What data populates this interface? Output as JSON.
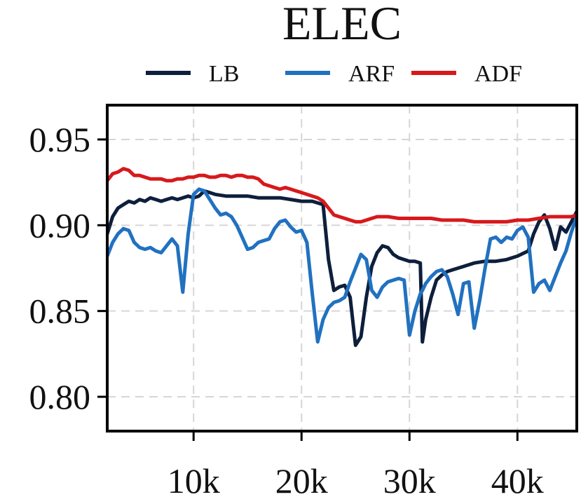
{
  "chart_data": {
    "type": "line",
    "title": "ELEC",
    "xlabel": "",
    "ylabel": "",
    "xlim": [
      2000,
      45500
    ],
    "ylim": [
      0.78,
      0.97
    ],
    "xticks": [
      10000,
      20000,
      30000,
      40000
    ],
    "xtick_labels": [
      "10k",
      "20k",
      "30k",
      "40k"
    ],
    "yticks": [
      0.8,
      0.85,
      0.9,
      0.95
    ],
    "ytick_labels": [
      "0.80",
      "0.85",
      "0.90",
      "0.95"
    ],
    "grid": true,
    "legend_position": "top",
    "series": [
      {
        "name": "LB",
        "color": "#0d1f3c",
        "x": [
          2000,
          2500,
          3000,
          3500,
          4000,
          4500,
          5000,
          5500,
          6000,
          6500,
          7000,
          7500,
          8000,
          8500,
          9000,
          9500,
          10000,
          10500,
          11000,
          11500,
          12000,
          13000,
          14000,
          15000,
          16000,
          17000,
          18000,
          19000,
          20000,
          21000,
          21500,
          22000,
          22500,
          23000,
          23500,
          24000,
          24500,
          25000,
          25500,
          26000,
          26500,
          27000,
          27500,
          28000,
          28500,
          29000,
          29500,
          30000,
          30500,
          31000,
          31200,
          31500,
          32000,
          32500,
          33000,
          33500,
          34000,
          35000,
          36000,
          37000,
          38000,
          39000,
          40000,
          41000,
          41500,
          42000,
          42500,
          43000,
          43500,
          44000,
          44500,
          45000,
          45500
        ],
        "values": [
          0.895,
          0.905,
          0.91,
          0.912,
          0.914,
          0.913,
          0.915,
          0.914,
          0.916,
          0.915,
          0.914,
          0.915,
          0.916,
          0.915,
          0.916,
          0.917,
          0.916,
          0.917,
          0.92,
          0.919,
          0.918,
          0.917,
          0.917,
          0.917,
          0.916,
          0.916,
          0.916,
          0.915,
          0.914,
          0.914,
          0.913,
          0.912,
          0.88,
          0.862,
          0.864,
          0.865,
          0.858,
          0.83,
          0.835,
          0.858,
          0.876,
          0.884,
          0.888,
          0.887,
          0.883,
          0.881,
          0.88,
          0.879,
          0.879,
          0.878,
          0.832,
          0.845,
          0.858,
          0.868,
          0.871,
          0.873,
          0.874,
          0.876,
          0.878,
          0.879,
          0.879,
          0.88,
          0.882,
          0.885,
          0.895,
          0.902,
          0.906,
          0.898,
          0.886,
          0.899,
          0.896,
          0.902,
          0.908
        ]
      },
      {
        "name": "ARF",
        "color": "#2171c0",
        "x": [
          2000,
          2500,
          3000,
          3500,
          4000,
          4500,
          5000,
          5500,
          6000,
          6500,
          7000,
          7500,
          8000,
          8500,
          9000,
          9500,
          10000,
          10500,
          11000,
          11500,
          12000,
          12500,
          13000,
          13500,
          14000,
          14500,
          15000,
          15500,
          16000,
          16500,
          17000,
          17500,
          18000,
          18500,
          19000,
          19500,
          20000,
          20500,
          21000,
          21500,
          22000,
          22500,
          23000,
          23500,
          24000,
          24500,
          25000,
          25500,
          26000,
          26500,
          27000,
          27500,
          28000,
          28500,
          29000,
          29500,
          30000,
          30500,
          31000,
          31200,
          31500,
          32000,
          32500,
          33000,
          33500,
          34000,
          34500,
          35000,
          35500,
          36000,
          36500,
          37000,
          37500,
          38000,
          38500,
          39000,
          39500,
          40000,
          40500,
          41000,
          41500,
          42000,
          42500,
          43000,
          43500,
          44000,
          44500,
          45000,
          45500
        ],
        "values": [
          0.882,
          0.89,
          0.895,
          0.898,
          0.897,
          0.89,
          0.887,
          0.886,
          0.887,
          0.885,
          0.884,
          0.888,
          0.892,
          0.888,
          0.861,
          0.895,
          0.918,
          0.921,
          0.92,
          0.915,
          0.91,
          0.906,
          0.907,
          0.905,
          0.9,
          0.893,
          0.886,
          0.887,
          0.89,
          0.891,
          0.892,
          0.898,
          0.902,
          0.903,
          0.899,
          0.896,
          0.897,
          0.89,
          0.86,
          0.832,
          0.845,
          0.852,
          0.855,
          0.856,
          0.858,
          0.867,
          0.875,
          0.883,
          0.88,
          0.862,
          0.858,
          0.864,
          0.867,
          0.868,
          0.869,
          0.868,
          0.836,
          0.85,
          0.86,
          0.862,
          0.866,
          0.87,
          0.873,
          0.874,
          0.87,
          0.86,
          0.848,
          0.866,
          0.867,
          0.84,
          0.856,
          0.875,
          0.892,
          0.893,
          0.89,
          0.893,
          0.892,
          0.897,
          0.899,
          0.893,
          0.861,
          0.866,
          0.868,
          0.862,
          0.87,
          0.878,
          0.885,
          0.896,
          0.905
        ],
        "x_note": ""
      },
      {
        "name": "ADF",
        "color": "#d7191c",
        "x": [
          2000,
          2500,
          3000,
          3500,
          4000,
          4500,
          5000,
          5500,
          6000,
          6500,
          7000,
          7500,
          8000,
          8500,
          9000,
          9500,
          10000,
          10500,
          11000,
          11500,
          12000,
          12500,
          13000,
          13500,
          14000,
          14500,
          15000,
          15500,
          16000,
          16500,
          17000,
          17500,
          18000,
          18500,
          19000,
          19500,
          20000,
          20500,
          21000,
          21500,
          22000,
          22500,
          23000,
          23500,
          24000,
          24500,
          25000,
          25500,
          26000,
          26500,
          27000,
          27500,
          28000,
          29000,
          30000,
          31000,
          32000,
          33000,
          34000,
          35000,
          36000,
          37000,
          38000,
          39000,
          40000,
          41000,
          42000,
          43000,
          44000,
          45000,
          45500
        ],
        "values": [
          0.926,
          0.93,
          0.931,
          0.933,
          0.932,
          0.929,
          0.929,
          0.928,
          0.927,
          0.927,
          0.927,
          0.926,
          0.926,
          0.927,
          0.927,
          0.928,
          0.928,
          0.929,
          0.929,
          0.928,
          0.928,
          0.929,
          0.929,
          0.928,
          0.929,
          0.929,
          0.928,
          0.928,
          0.927,
          0.924,
          0.923,
          0.922,
          0.921,
          0.922,
          0.921,
          0.92,
          0.919,
          0.918,
          0.917,
          0.916,
          0.914,
          0.91,
          0.906,
          0.905,
          0.904,
          0.903,
          0.902,
          0.902,
          0.903,
          0.904,
          0.905,
          0.905,
          0.905,
          0.904,
          0.904,
          0.904,
          0.904,
          0.903,
          0.903,
          0.903,
          0.902,
          0.902,
          0.902,
          0.902,
          0.903,
          0.903,
          0.904,
          0.905,
          0.905,
          0.905,
          0.906
        ]
      }
    ]
  }
}
